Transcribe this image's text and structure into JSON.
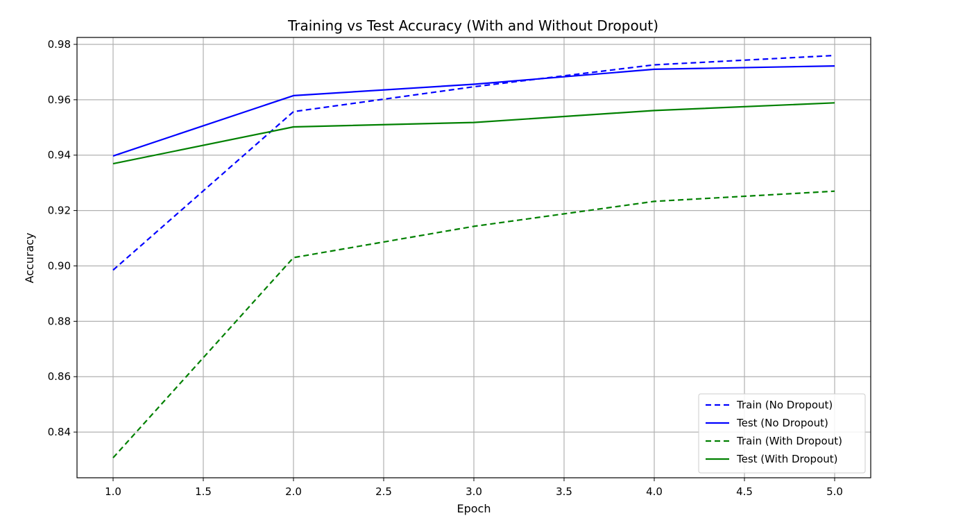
{
  "chart_data": {
    "type": "line",
    "title": "Training vs Test Accuracy (With and Without Dropout)",
    "xlabel": "Epoch",
    "ylabel": "Accuracy",
    "xlim": [
      0.8,
      5.2
    ],
    "ylim": [
      0.8235,
      0.9825
    ],
    "x_ticks": [
      1.0,
      1.5,
      2.0,
      2.5,
      3.0,
      3.5,
      4.0,
      4.5,
      5.0
    ],
    "y_ticks": [
      0.84,
      0.86,
      0.88,
      0.9,
      0.92,
      0.94,
      0.96,
      0.98
    ],
    "x_tick_labels": [
      "1.0",
      "1.5",
      "2.0",
      "2.5",
      "3.0",
      "3.5",
      "4.0",
      "4.5",
      "5.0"
    ],
    "y_tick_labels": [
      "0.84",
      "0.86",
      "0.88",
      "0.90",
      "0.92",
      "0.94",
      "0.96",
      "0.98"
    ],
    "grid": true,
    "legend_position": "lower-right",
    "x": [
      1,
      2,
      3,
      4,
      5
    ],
    "series": [
      {
        "name": "Train (No Dropout)",
        "values": [
          0.8985,
          0.9557,
          0.9647,
          0.9726,
          0.976
        ],
        "color": "#0000ff",
        "style": "dashed"
      },
      {
        "name": "Test (No Dropout)",
        "values": [
          0.9397,
          0.9615,
          0.9656,
          0.971,
          0.9722
        ],
        "color": "#0000ff",
        "style": "solid"
      },
      {
        "name": "Train (With Dropout)",
        "values": [
          0.8307,
          0.903,
          0.9143,
          0.9233,
          0.927
        ],
        "color": "#008000",
        "style": "dashed"
      },
      {
        "name": "Test (With Dropout)",
        "values": [
          0.9369,
          0.9502,
          0.9518,
          0.9561,
          0.9589
        ],
        "color": "#008000",
        "style": "solid"
      }
    ]
  }
}
